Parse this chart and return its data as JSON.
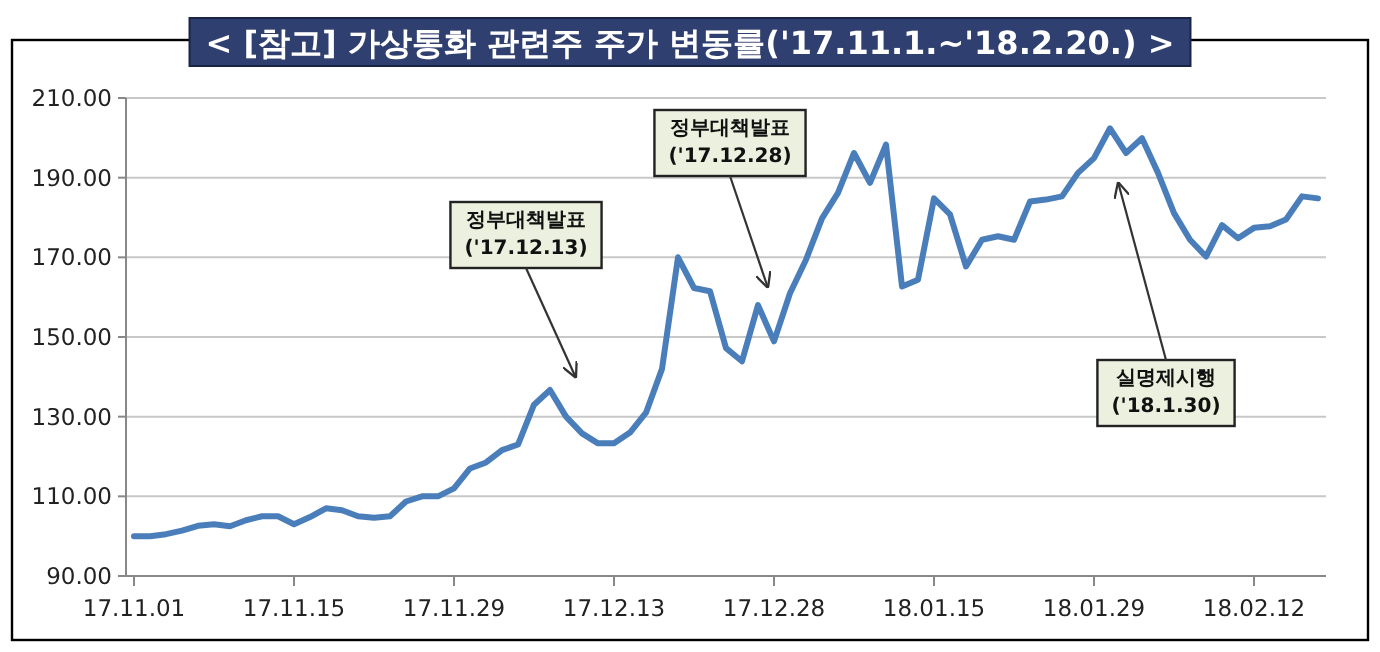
{
  "chart_data": {
    "type": "line",
    "title": "< [참고] 가상통화 관련주 주가 변동률('17.11.1.~'18.2.20.) >",
    "categories": [
      "17.11.01",
      null,
      null,
      null,
      null,
      null,
      null,
      null,
      null,
      null,
      "17.11.15",
      null,
      null,
      null,
      null,
      null,
      null,
      null,
      null,
      null,
      "17.11.29",
      null,
      null,
      null,
      null,
      null,
      null,
      null,
      null,
      null,
      "17.12.13",
      null,
      null,
      null,
      null,
      null,
      null,
      null,
      null,
      null,
      "17.12.28",
      null,
      null,
      null,
      null,
      null,
      null,
      null,
      null,
      null,
      "18.01.15",
      null,
      null,
      null,
      null,
      null,
      null,
      null,
      null,
      null,
      "18.01.29",
      null,
      null,
      null,
      null,
      null,
      null,
      null,
      null,
      null,
      "18.02.12",
      null,
      null,
      null,
      null
    ],
    "series": [
      {
        "color": "#4a7ebb",
        "values": [
          100,
          100,
          100.5,
          101.4,
          102.6,
          103,
          102.5,
          104,
          105,
          105,
          103,
          104.8,
          107,
          106.5,
          105,
          104.6,
          105,
          108.7,
          110,
          110,
          112,
          117,
          118.5,
          121.6,
          123,
          133,
          136.7,
          130,
          125.8,
          123.3,
          123.3,
          126,
          131,
          142,
          170,
          162.3,
          161.5,
          147.2,
          143.9,
          158,
          148.9,
          161,
          169.4,
          179.8,
          186.2,
          196.2,
          188.7,
          198.3,
          162.7,
          164.4,
          184.8,
          180.8,
          167.7,
          174.4,
          175.3,
          174.4,
          184,
          184.5,
          185.3,
          191.2,
          194.9,
          202.4,
          196.2,
          199.9,
          191.2,
          181.1,
          174.4,
          170.2,
          178.1,
          174.8,
          177.4,
          177.8,
          179.5,
          185.3,
          184.8
        ]
      }
    ],
    "ylim": [
      90,
      210
    ],
    "yticks": [
      {
        "value": 90,
        "label": "90.00"
      },
      {
        "value": 110,
        "label": "110.00"
      },
      {
        "value": 130,
        "label": "130.00"
      },
      {
        "value": 150,
        "label": "150.00"
      },
      {
        "value": 170,
        "label": "170.00"
      },
      {
        "value": 190,
        "label": "190.00"
      },
      {
        "value": 210,
        "label": "210.00"
      }
    ],
    "grid": "y",
    "marker": "none",
    "line_style": "solid",
    "annotations": [
      "정부대책발표\n('17.12.13)",
      "정부대책발표\n('17.12.28)",
      "실명제시행\n('18.1.30)"
    ]
  }
}
